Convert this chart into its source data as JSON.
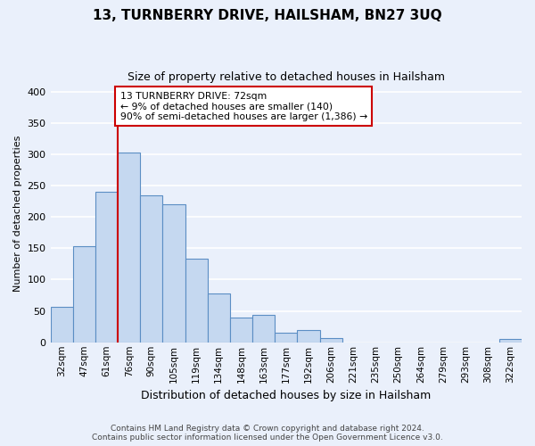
{
  "title": "13, TURNBERRY DRIVE, HAILSHAM, BN27 3UQ",
  "subtitle": "Size of property relative to detached houses in Hailsham",
  "xlabel": "Distribution of detached houses by size in Hailsham",
  "ylabel": "Number of detached properties",
  "bar_labels": [
    "32sqm",
    "47sqm",
    "61sqm",
    "76sqm",
    "90sqm",
    "105sqm",
    "119sqm",
    "134sqm",
    "148sqm",
    "163sqm",
    "177sqm",
    "192sqm",
    "206sqm",
    "221sqm",
    "235sqm",
    "250sqm",
    "264sqm",
    "279sqm",
    "293sqm",
    "308sqm",
    "322sqm"
  ],
  "bar_values": [
    57,
    153,
    240,
    303,
    234,
    220,
    133,
    78,
    40,
    44,
    15,
    20,
    7,
    0,
    0,
    0,
    0,
    0,
    0,
    0,
    5
  ],
  "bar_color": "#c5d8f0",
  "bar_edge_color": "#5b8ec4",
  "ylim": [
    0,
    410
  ],
  "yticks": [
    0,
    50,
    100,
    150,
    200,
    250,
    300,
    350,
    400
  ],
  "marker_idx": 3,
  "annotation_title": "13 TURNBERRY DRIVE: 72sqm",
  "annotation_line1": "← 9% of detached houses are smaller (140)",
  "annotation_line2": "90% of semi-detached houses are larger (1,386) →",
  "annotation_box_color": "#ffffff",
  "annotation_box_edge": "#cc0000",
  "marker_line_color": "#cc0000",
  "footer_line1": "Contains HM Land Registry data © Crown copyright and database right 2024.",
  "footer_line2": "Contains public sector information licensed under the Open Government Licence v3.0.",
  "bg_color": "#eaf0fb",
  "grid_color": "#ffffff"
}
